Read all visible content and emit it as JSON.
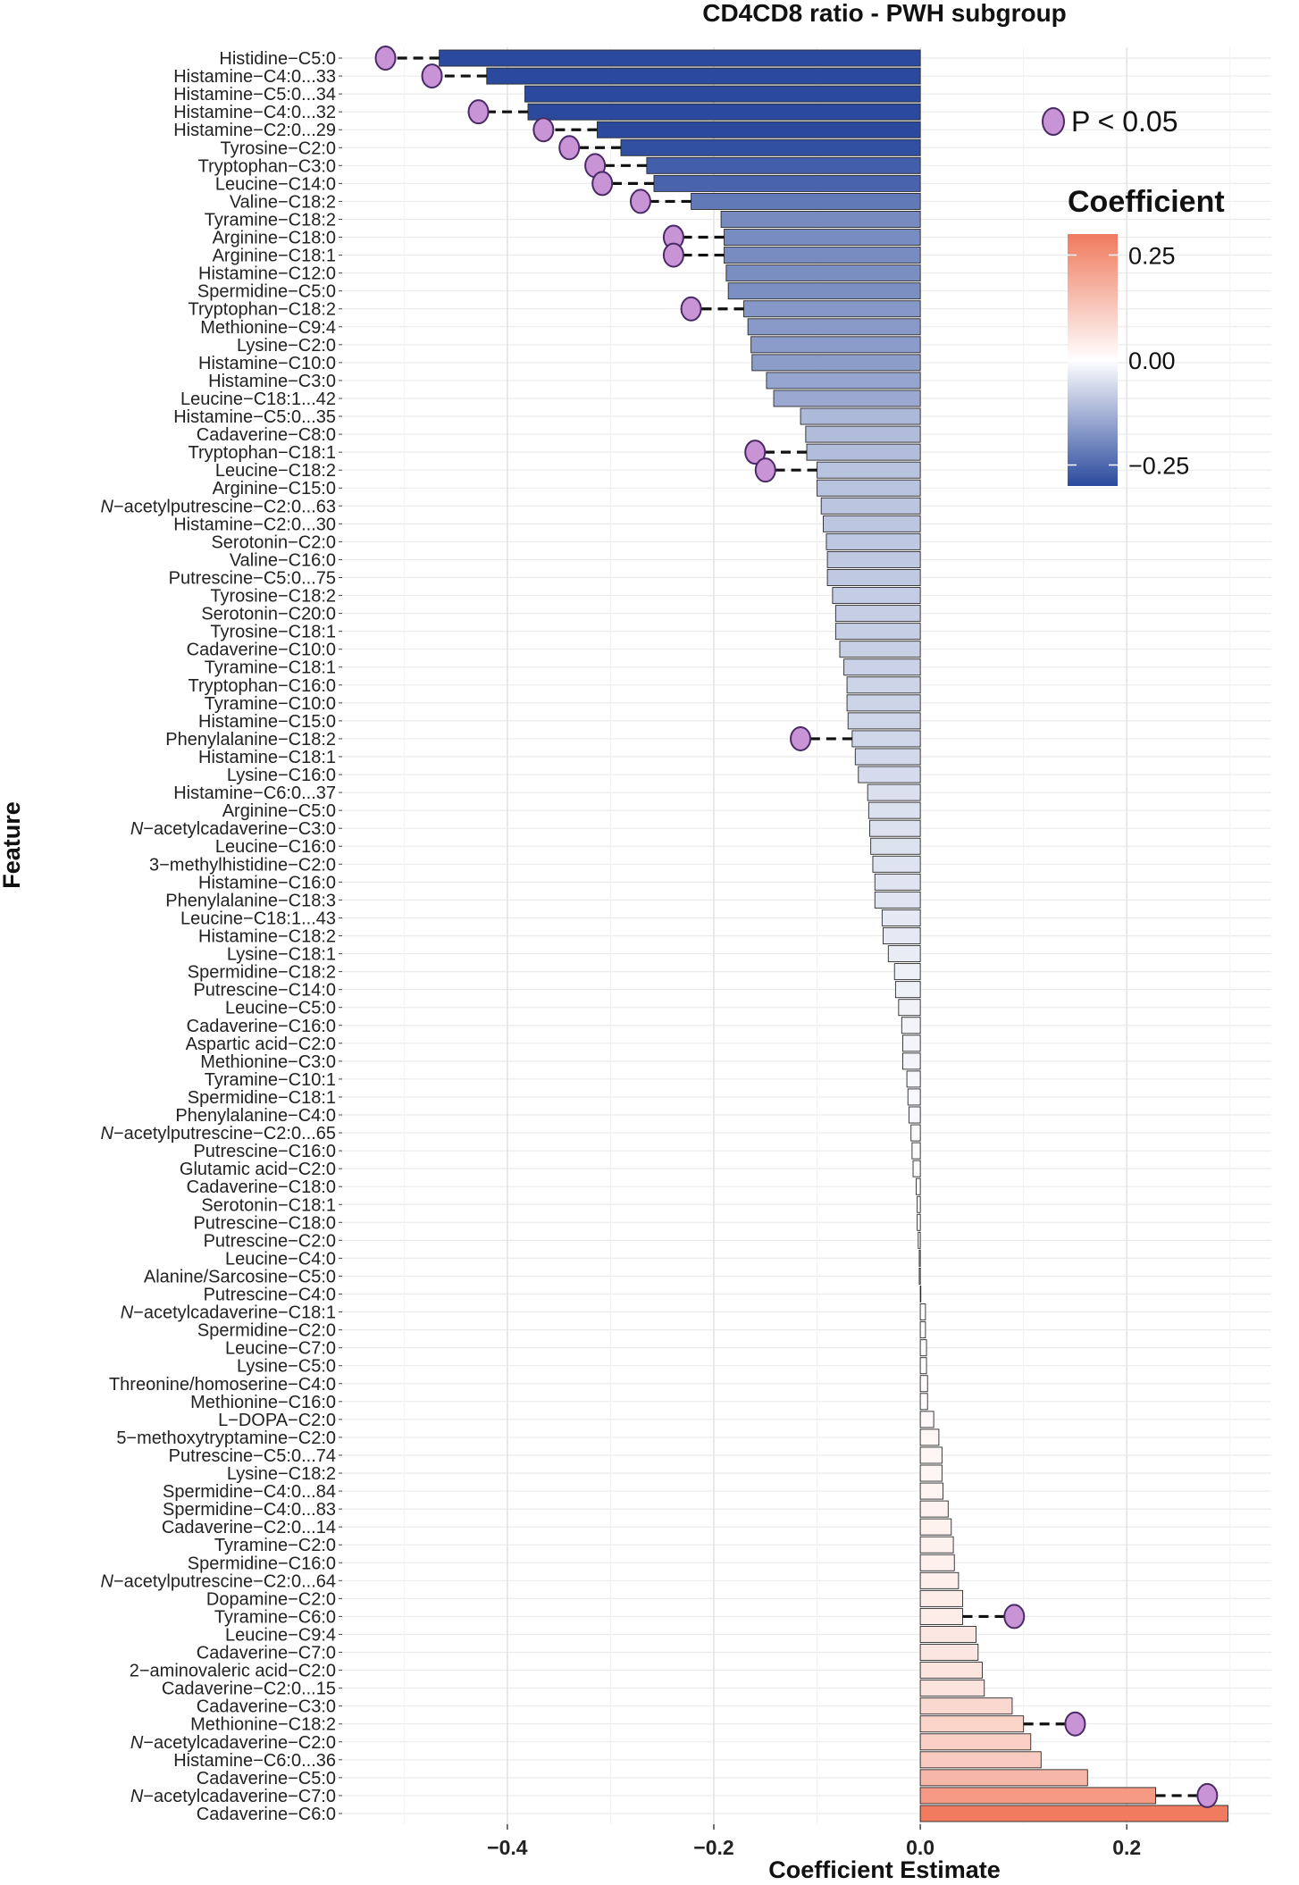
{
  "chart_data": {
    "type": "bar",
    "orientation": "horizontal",
    "title": "CD4CD8 ratio - PWH subgroup",
    "xlabel": "Coefficient Estimate",
    "ylabel": "Feature",
    "xlim": [
      -0.56,
      0.34
    ],
    "x_ticks": [
      {
        "value": -0.4,
        "label": "−0.4"
      },
      {
        "value": -0.2,
        "label": "−0.2"
      },
      {
        "value": 0.0,
        "label": "0.0"
      },
      {
        "value": 0.2,
        "label": "0.2"
      }
    ],
    "grid": true,
    "color_scale": {
      "title": "Coefficient",
      "low_color": "#2b4a9e",
      "mid_color": "#ffffff",
      "high_color": "#f07a5e",
      "range": [
        -0.3,
        0.3
      ],
      "ticks": [
        {
          "value": 0.25,
          "label": "0.25"
        },
        {
          "value": 0.0,
          "label": "0.00"
        },
        {
          "value": -0.25,
          "label": "−0.25"
        }
      ]
    },
    "significance_legend": {
      "label": "P < 0.05",
      "marker_color": "#c994d6"
    },
    "legend_position": "top-right",
    "categories": [
      "Histidine−C5:0",
      "Histamine−C4:0...33",
      "Histamine−C5:0...34",
      "Histamine−C4:0...32",
      "Histamine−C2:0...29",
      "Tyrosine−C2:0",
      "Tryptophan−C3:0",
      "Leucine−C14:0",
      "Valine−C18:2",
      "Tyramine−C18:2",
      "Arginine−C18:0",
      "Arginine−C18:1",
      "Histamine−C12:0",
      "Spermidine−C5:0",
      "Tryptophan−C18:2",
      "Methionine−C9:4",
      "Lysine−C2:0",
      "Histamine−C10:0",
      "Histamine−C3:0",
      "Leucine−C18:1...42",
      "Histamine−C5:0...35",
      "Cadaverine−C8:0",
      "Tryptophan−C18:1",
      "Leucine−C18:2",
      "Arginine−C15:0",
      "N−acetylputrescine−C2:0...63",
      "Histamine−C2:0...30",
      "Serotonin−C2:0",
      "Valine−C16:0",
      "Putrescine−C5:0...75",
      "Tyrosine−C18:2",
      "Serotonin−C20:0",
      "Tyrosine−C18:1",
      "Cadaverine−C10:0",
      "Tyramine−C18:1",
      "Tryptophan−C16:0",
      "Tyramine−C10:0",
      "Histamine−C15:0",
      "Phenylalanine−C18:2",
      "Histamine−C18:1",
      "Lysine−C16:0",
      "Histamine−C6:0...37",
      "Arginine−C5:0",
      "N−acetylcadaverine−C3:0",
      "Leucine−C16:0",
      "3−methylhistidine−C2:0",
      "Histamine−C16:0",
      "Phenylalanine−C18:3",
      "Leucine−C18:1...43",
      "Histamine−C18:2",
      "Lysine−C18:1",
      "Spermidine−C18:2",
      "Putrescine−C14:0",
      "Leucine−C5:0",
      "Cadaverine−C16:0",
      "Aspartic acid−C2:0",
      "Methionine−C3:0",
      "Tyramine−C10:1",
      "Spermidine−C18:1",
      "Phenylalanine−C4:0",
      "N−acetylputrescine−C2:0...65",
      "Putrescine−C16:0",
      "Glutamic acid−C2:0",
      "Cadaverine−C18:0",
      "Serotonin−C18:1",
      "Putrescine−C18:0",
      "Putrescine−C2:0",
      "Leucine−C4:0",
      "Alanine/Sarcosine−C5:0",
      "Putrescine−C4:0",
      "N−acetylcadaverine−C18:1",
      "Spermidine−C2:0",
      "Leucine−C7:0",
      "Lysine−C5:0",
      "Threonine/homoserine−C4:0",
      "Methionine−C16:0",
      "L−DOPA−C2:0",
      "5−methoxytryptamine−C2:0",
      "Putrescine−C5:0...74",
      "Lysine−C18:2",
      "Spermidine−C4:0...84",
      "Spermidine−C4:0...83",
      "Cadaverine−C2:0...14",
      "Tyramine−C2:0",
      "Spermidine−C16:0",
      "N−acetylputrescine−C2:0...64",
      "Dopamine−C2:0",
      "Tyramine−C6:0",
      "Leucine−C9:4",
      "Cadaverine−C7:0",
      "2−aminovaleric acid−C2:0",
      "Cadaverine−C2:0...15",
      "Cadaverine−C3:0",
      "Methionine−C18:2",
      "N−acetylcadaverine−C2:0",
      "Histamine−C6:0...36",
      "Cadaverine−C5:0",
      "N−acetylcadaverine−C7:0",
      "Cadaverine−C6:0"
    ],
    "values": [
      -0.466,
      -0.42,
      -0.383,
      -0.38,
      -0.313,
      -0.29,
      -0.265,
      -0.258,
      -0.222,
      -0.193,
      -0.19,
      -0.19,
      -0.188,
      -0.186,
      -0.171,
      -0.167,
      -0.164,
      -0.163,
      -0.149,
      -0.142,
      -0.116,
      -0.111,
      -0.11,
      -0.1,
      -0.1,
      -0.096,
      -0.094,
      -0.091,
      -0.09,
      -0.09,
      -0.085,
      -0.082,
      -0.082,
      -0.078,
      -0.074,
      -0.071,
      -0.071,
      -0.07,
      -0.066,
      -0.063,
      -0.06,
      -0.051,
      -0.05,
      -0.049,
      -0.048,
      -0.046,
      -0.044,
      -0.044,
      -0.037,
      -0.036,
      -0.031,
      -0.025,
      -0.024,
      -0.021,
      -0.018,
      -0.017,
      -0.017,
      -0.013,
      -0.012,
      -0.011,
      -0.009,
      -0.008,
      -0.007,
      -0.004,
      -0.003,
      -0.003,
      -0.002,
      -0.001,
      -0.001,
      0.0,
      0.005,
      0.005,
      0.006,
      0.006,
      0.007,
      0.007,
      0.013,
      0.018,
      0.021,
      0.021,
      0.022,
      0.027,
      0.03,
      0.032,
      0.033,
      0.037,
      0.041,
      0.041,
      0.054,
      0.056,
      0.06,
      0.062,
      0.089,
      0.1,
      0.107,
      0.117,
      0.162,
      0.228,
      0.298
    ],
    "significant_points": [
      {
        "feature": "Histidine−C5:0",
        "x": -0.518
      },
      {
        "feature": "Histamine−C4:0...33",
        "x": -0.473
      },
      {
        "feature": "Histamine−C4:0...32",
        "x": -0.428
      },
      {
        "feature": "Histamine−C2:0...29",
        "x": -0.365
      },
      {
        "feature": "Tyrosine−C2:0",
        "x": -0.34
      },
      {
        "feature": "Tryptophan−C3:0",
        "x": -0.315
      },
      {
        "feature": "Leucine−C14:0",
        "x": -0.308
      },
      {
        "feature": "Valine−C18:2",
        "x": -0.271
      },
      {
        "feature": "Arginine−C18:0",
        "x": -0.239
      },
      {
        "feature": "Arginine−C18:1",
        "x": -0.239
      },
      {
        "feature": "Tryptophan−C18:2",
        "x": -0.222
      },
      {
        "feature": "Tryptophan−C18:1",
        "x": -0.16
      },
      {
        "feature": "Leucine−C18:2",
        "x": -0.15
      },
      {
        "feature": "Phenylalanine−C18:2",
        "x": -0.116
      },
      {
        "feature": "Tyramine−C6:0",
        "x": 0.091
      },
      {
        "feature": "Methionine−C18:2",
        "x": 0.15
      },
      {
        "feature": "N−acetylcadaverine−C7:0",
        "x": 0.278
      }
    ]
  }
}
